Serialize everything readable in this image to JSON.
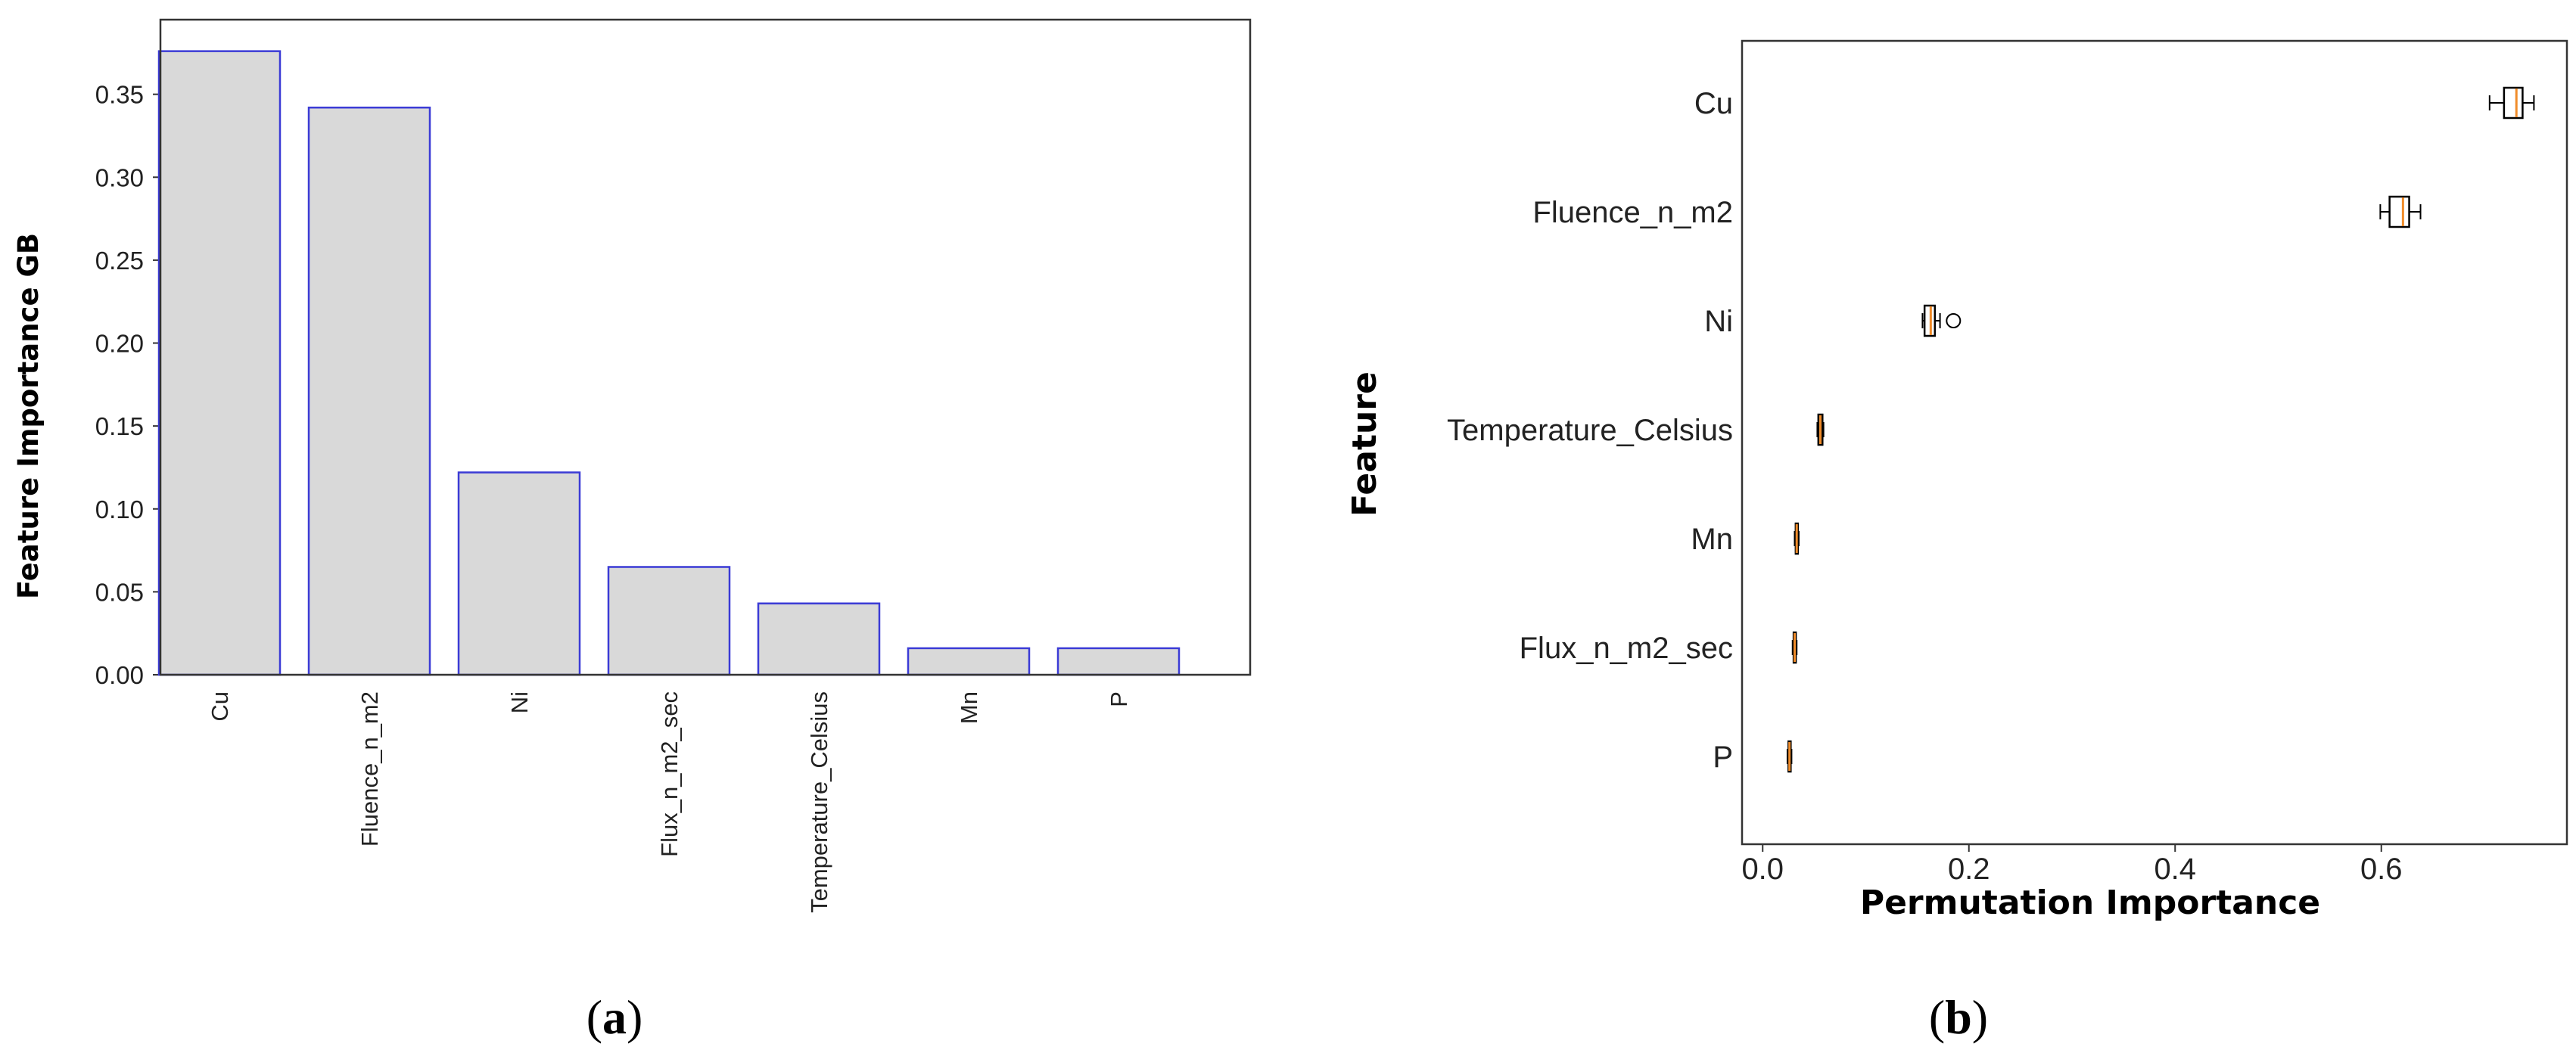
{
  "chart_data": [
    {
      "type": "bar",
      "panel_label": {
        "open": "(",
        "letter": "a",
        "close": ")"
      },
      "categories": [
        "Cu",
        "Fluence_n_m2",
        "Ni",
        "Flux_n_m2_sec",
        "Temperature_Celsius",
        "Mn",
        "P"
      ],
      "values": [
        0.376,
        0.342,
        0.122,
        0.065,
        0.043,
        0.016,
        0.016
      ],
      "title": "",
      "xlabel": "",
      "ylabel": "Feature Importance GB",
      "ylim": [
        0,
        0.395
      ],
      "yticks": [
        0.0,
        0.05,
        0.1,
        0.15,
        0.2,
        0.25,
        0.3,
        0.35
      ],
      "ytick_labels": [
        "0.00",
        "0.05",
        "0.10",
        "0.15",
        "0.20",
        "0.25",
        "0.30",
        "0.35"
      ],
      "grid": false,
      "colors": {
        "bar_fill": "#d9d9d9",
        "bar_edge": "#3b3bd6",
        "frame": "#333333"
      }
    },
    {
      "type": "box",
      "orientation": "horizontal",
      "panel_label": {
        "open": "(",
        "letter": "b",
        "close": ")"
      },
      "categories": [
        "Cu",
        "Fluence_n_m2",
        "Ni",
        "Temperature_Celsius",
        "Mn",
        "Flux_n_m2_sec",
        "P"
      ],
      "boxes": [
        {
          "whislo": 0.705,
          "q1": 0.719,
          "med": 0.731,
          "q3": 0.737,
          "whishi": 0.748,
          "fliers": []
        },
        {
          "whislo": 0.599,
          "q1": 0.608,
          "med": 0.621,
          "q3": 0.627,
          "whishi": 0.638,
          "fliers": []
        },
        {
          "whislo": 0.155,
          "q1": 0.157,
          "med": 0.163,
          "q3": 0.167,
          "whishi": 0.172,
          "fliers": [
            0.185
          ]
        },
        {
          "whislo": 0.053,
          "q1": 0.054,
          "med": 0.056,
          "q3": 0.058,
          "whishi": 0.059,
          "fliers": []
        },
        {
          "whislo": 0.031,
          "q1": 0.032,
          "med": 0.033,
          "q3": 0.034,
          "whishi": 0.035,
          "fliers": []
        },
        {
          "whislo": 0.029,
          "q1": 0.03,
          "med": 0.031,
          "q3": 0.032,
          "whishi": 0.033,
          "fliers": []
        },
        {
          "whislo": 0.024,
          "q1": 0.025,
          "med": 0.026,
          "q3": 0.027,
          "whishi": 0.028,
          "fliers": []
        }
      ],
      "title": "",
      "xlabel": "Permutation Importance",
      "ylabel": "Feature",
      "xlim": [
        -0.02,
        0.78
      ],
      "xticks": [
        0.0,
        0.2,
        0.4,
        0.6
      ],
      "xtick_labels": [
        "0.0",
        "0.2",
        "0.4",
        "0.6"
      ],
      "grid": false,
      "colors": {
        "box_edge": "#000000",
        "box_fill": "#ffffff",
        "median": "#f08c2a",
        "frame": "#333333"
      }
    }
  ]
}
